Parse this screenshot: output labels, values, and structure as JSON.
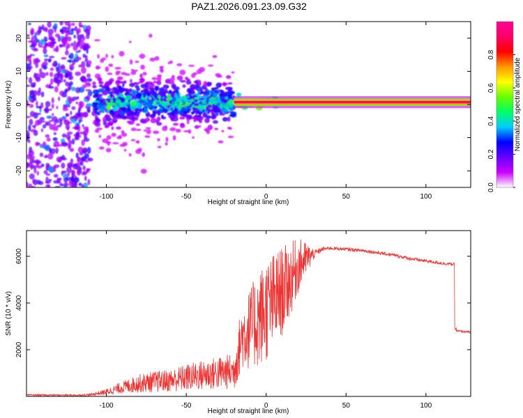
{
  "title": "PAZ1.2026.091.23.09.G32",
  "chart_data": [
    {
      "type": "heatmap",
      "name": "spectrogram",
      "xlabel": "Height of straight line (km)",
      "ylabel": "Frequency (Hz)",
      "xlim": [
        -150,
        128
      ],
      "ylim": [
        -25,
        25
      ],
      "xticks": [
        -100,
        -50,
        0,
        50,
        100
      ],
      "xtick_labels": [
        "-100",
        "-50",
        "0",
        "50",
        "100"
      ],
      "yticks": [
        -20,
        -10,
        0,
        10,
        20
      ],
      "ytick_labels": [
        "-20",
        "-10",
        "0",
        "10",
        "20"
      ],
      "colorbar": {
        "label": "Normalized spectral amplitude",
        "range": [
          0,
          1
        ],
        "ticks": [
          0.0,
          0.2,
          0.4,
          0.6,
          0.8
        ],
        "tick_labels": [
          "0.0",
          "0.2",
          "0.4",
          "0.6",
          "0.8"
        ],
        "colors": [
          "#ffffff",
          "#cc00ff",
          "#6600ff",
          "#0000ff",
          "#00ccff",
          "#00ff66",
          "#66ff00",
          "#ffff00",
          "#ff9900",
          "#ff0000",
          "#ff0066",
          "#ff0099"
        ]
      },
      "regions": [
        {
          "x": [
            -150,
            -110
          ],
          "description": "scattered noise",
          "amplitude": [
            0.1,
            0.35
          ]
        },
        {
          "x": [
            -108,
            -20
          ],
          "freq_center": 0.7,
          "amplitude": [
            0.2,
            0.5
          ]
        },
        {
          "x": [
            -20,
            128
          ],
          "freq_center": 0.7,
          "amplitude": [
            0.6,
            1.0
          ]
        }
      ]
    },
    {
      "type": "line",
      "name": "snr",
      "xlabel": "Height of straight line (km)",
      "ylabel": "SNR (10 * v/v)",
      "xlim": [
        -150,
        128
      ],
      "ylim": [
        0,
        7100
      ],
      "xticks": [
        -100,
        -50,
        0,
        50,
        100
      ],
      "xtick_labels": [
        "-100",
        "-50",
        "0",
        "50",
        "100"
      ],
      "yticks": [
        2000,
        4000,
        6000
      ],
      "ytick_labels": [
        "2000",
        "4000",
        "6000"
      ],
      "color": "#ee3333",
      "series": [
        {
          "name": "SNR",
          "x": [
            -150,
            -120,
            -110,
            -100,
            -90,
            -80,
            -70,
            -60,
            -50,
            -40,
            -30,
            -20,
            -15,
            -10,
            -5,
            0,
            5,
            10,
            15,
            20,
            25,
            30,
            35,
            40,
            50,
            60,
            70,
            80,
            90,
            100,
            110,
            118,
            119,
            120,
            128
          ],
          "values": [
            60,
            50,
            80,
            250,
            500,
            650,
            700,
            750,
            900,
            1050,
            1150,
            1200,
            2600,
            2900,
            3300,
            3700,
            4100,
            4500,
            5000,
            5600,
            5900,
            6100,
            6300,
            6350,
            6300,
            6250,
            6150,
            6050,
            5900,
            5800,
            5700,
            5650,
            2900,
            2800,
            2750
          ],
          "spread": [
            60,
            50,
            80,
            200,
            400,
            600,
            700,
            750,
            900,
            1000,
            1100,
            1200,
            1800,
            2200,
            2600,
            2800,
            2600,
            2400,
            2000,
            1500,
            900,
            300,
            150,
            120,
            120,
            120,
            120,
            120,
            120,
            120,
            120,
            120,
            80,
            80,
            80
          ]
        }
      ]
    }
  ]
}
